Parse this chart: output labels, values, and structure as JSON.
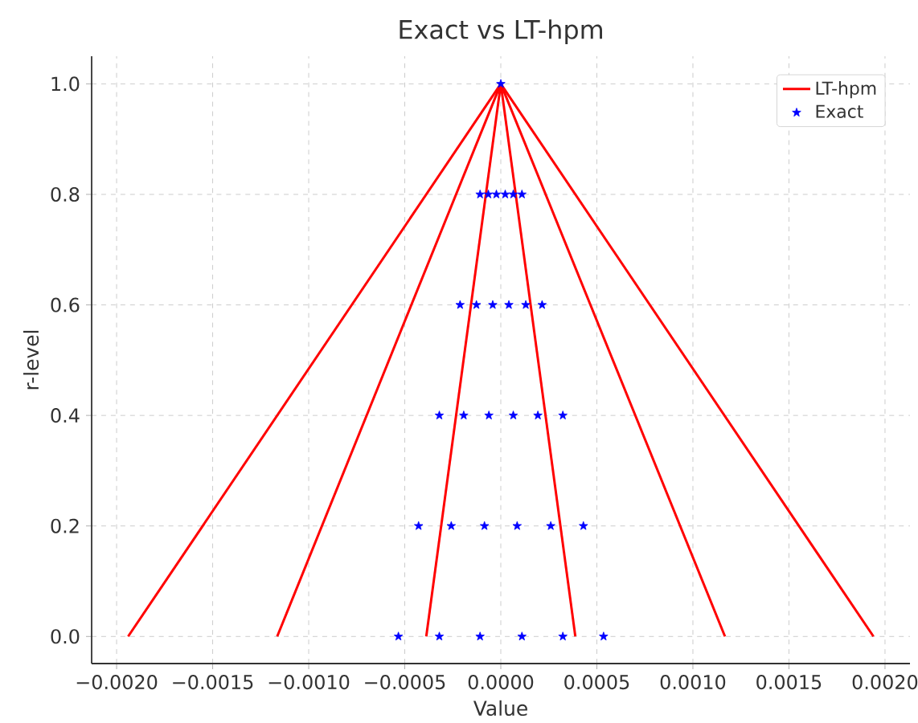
{
  "chart_data": {
    "type": "line",
    "title": "Exact vs LT-hpm",
    "xlabel": "Value",
    "ylabel": "r-level",
    "xlim": [
      -0.00213,
      0.00213
    ],
    "ylim": [
      -0.049,
      1.05
    ],
    "xticks": [
      {
        "value": -0.002,
        "label": "−0.0020"
      },
      {
        "value": -0.0015,
        "label": "−0.0015"
      },
      {
        "value": -0.001,
        "label": "−0.0010"
      },
      {
        "value": -0.0005,
        "label": "−0.0005"
      },
      {
        "value": 0,
        "label": "0.0000"
      },
      {
        "value": 0.0005,
        "label": "0.0005"
      },
      {
        "value": 0.001,
        "label": "0.0010"
      },
      {
        "value": 0.0015,
        "label": "0.0015"
      },
      {
        "value": 0.002,
        "label": "0.0020"
      }
    ],
    "yticks": [
      {
        "value": 0,
        "label": "0.0"
      },
      {
        "value": 0.2,
        "label": "0.2"
      },
      {
        "value": 0.4,
        "label": "0.4"
      },
      {
        "value": 0.6,
        "label": "0.6"
      },
      {
        "value": 0.8,
        "label": "0.8"
      },
      {
        "value": 1,
        "label": "1.0"
      }
    ],
    "grid": true,
    "legend": "top right",
    "line_style": "solid",
    "series": [
      {
        "name": "LT-hpm",
        "color": "#ff0000",
        "marker": "none",
        "x": [
          -0.00194,
          0
        ],
        "values": [
          0,
          1
        ]
      },
      {
        "color": "#ff0000",
        "marker": "none",
        "x": [
          -0.001164,
          0
        ],
        "values": [
          0,
          1
        ]
      },
      {
        "color": "#ff0000",
        "marker": "none",
        "x": [
          -0.000388,
          0
        ],
        "values": [
          0,
          1
        ]
      },
      {
        "color": "#ff0000",
        "marker": "none",
        "x": [
          0.000388,
          0
        ],
        "values": [
          0,
          1
        ]
      },
      {
        "color": "#ff0000",
        "marker": "none",
        "x": [
          0.001167,
          0
        ],
        "values": [
          0,
          1
        ]
      },
      {
        "color": "#ff0000",
        "marker": "none",
        "x": [
          0.00194,
          0
        ],
        "values": [
          0,
          1
        ]
      },
      {
        "name": "Exact",
        "type": "scatter",
        "color": "#0000ff",
        "marker": "star",
        "x": [
          -0.000533,
          -0.00032,
          -0.000108,
          0.00011,
          0.000323,
          0.000535,
          -0.000428,
          -0.000258,
          -8.5e-05,
          8.5e-05,
          0.00026,
          0.00043,
          -0.00032,
          -0.000193,
          -6.2e-05,
          6.5e-05,
          0.000193,
          0.000323,
          -0.000212,
          -0.000127,
          -4.2e-05,
          4.2e-05,
          0.00013,
          0.000215,
          -0.000108,
          -6.5e-05,
          -2.3e-05,
          2.3e-05,
          6.5e-05,
          0.00011,
          0
        ],
        "values": [
          0,
          0,
          0,
          0,
          0,
          0,
          0.2,
          0.2,
          0.2,
          0.2,
          0.2,
          0.2,
          0.4,
          0.4,
          0.4,
          0.4,
          0.4,
          0.4,
          0.6,
          0.6,
          0.6,
          0.6,
          0.6,
          0.6,
          0.8,
          0.8,
          0.8,
          0.8,
          0.8,
          0.8,
          1
        ]
      }
    ]
  }
}
